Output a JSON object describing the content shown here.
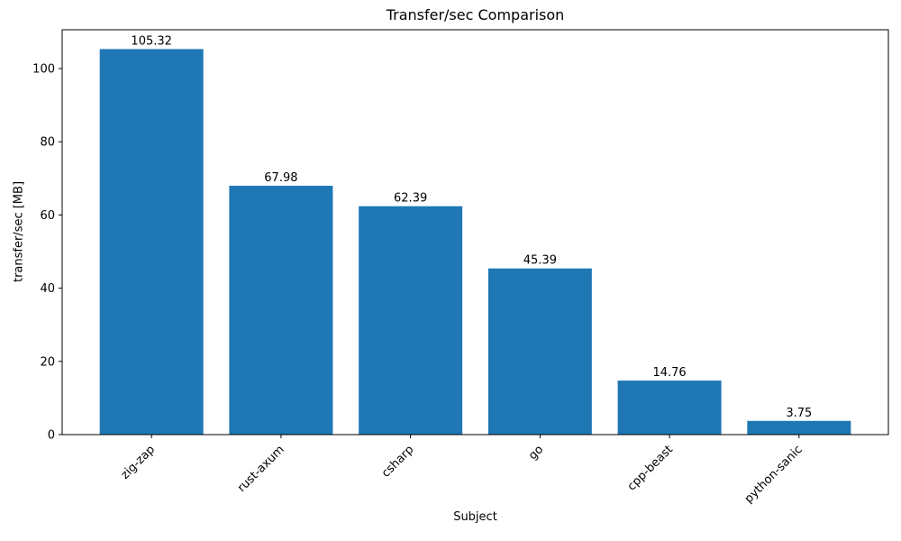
{
  "figure": {
    "background_color": "#ffffff",
    "text_color": "#000000",
    "axes_edge_color": "#000000"
  },
  "chart_data": {
    "type": "bar",
    "title": "Transfer/sec Comparison",
    "xlabel": "Subject",
    "ylabel": "transfer/sec [MB]",
    "categories": [
      "zig-zap",
      "rust-axum",
      "csharp",
      "go",
      "cpp-beast",
      "python-sanic"
    ],
    "values": [
      105.32,
      67.98,
      62.39,
      45.39,
      14.76,
      3.75
    ],
    "value_labels": [
      "105.32",
      "67.98",
      "62.39",
      "45.39",
      "14.76",
      "3.75"
    ],
    "bar_color": "#1f77b4",
    "yticks": [
      0,
      20,
      40,
      60,
      80,
      100
    ],
    "ytick_labels": [
      "0",
      "20",
      "40",
      "60",
      "80",
      "100"
    ],
    "ylim": [
      0,
      110.6
    ],
    "grid": false,
    "legend_position": "none",
    "xtick_label_rotation_deg": 45,
    "bar_width_fraction": 0.8
  }
}
